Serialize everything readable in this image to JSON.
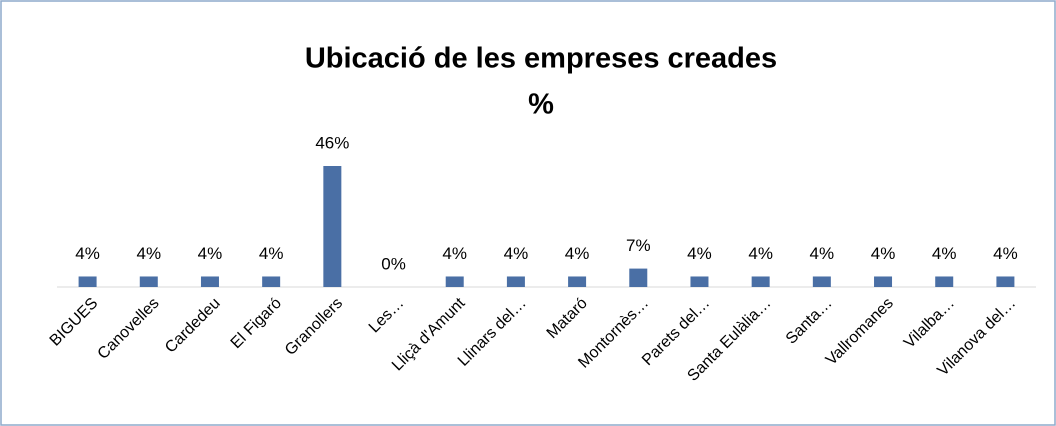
{
  "chart_data": {
    "type": "bar",
    "title": "Ubicació de les empreses creades",
    "subtitle": "%",
    "categories": [
      "BIGUES",
      "Canovelles",
      "Cardedeu",
      "El Figaró",
      "Granollers",
      "Les…",
      "Lliçà d'Amunt",
      "Llinars del…",
      "Mataró",
      "Montornès…",
      "Parets del…",
      "Santa Eulàlia…",
      "Santa…",
      "Vallromanes",
      "Vilalba…",
      "Vilanova del…"
    ],
    "values": [
      4,
      4,
      4,
      4,
      46,
      0,
      4,
      4,
      4,
      7,
      4,
      4,
      4,
      4,
      4,
      4
    ],
    "value_labels": [
      "4%",
      "4%",
      "4%",
      "4%",
      "46%",
      "0%",
      "4%",
      "4%",
      "4%",
      "7%",
      "4%",
      "4%",
      "4%",
      "4%",
      "4%",
      "4%"
    ],
    "color": "#4a6fa5"
  }
}
